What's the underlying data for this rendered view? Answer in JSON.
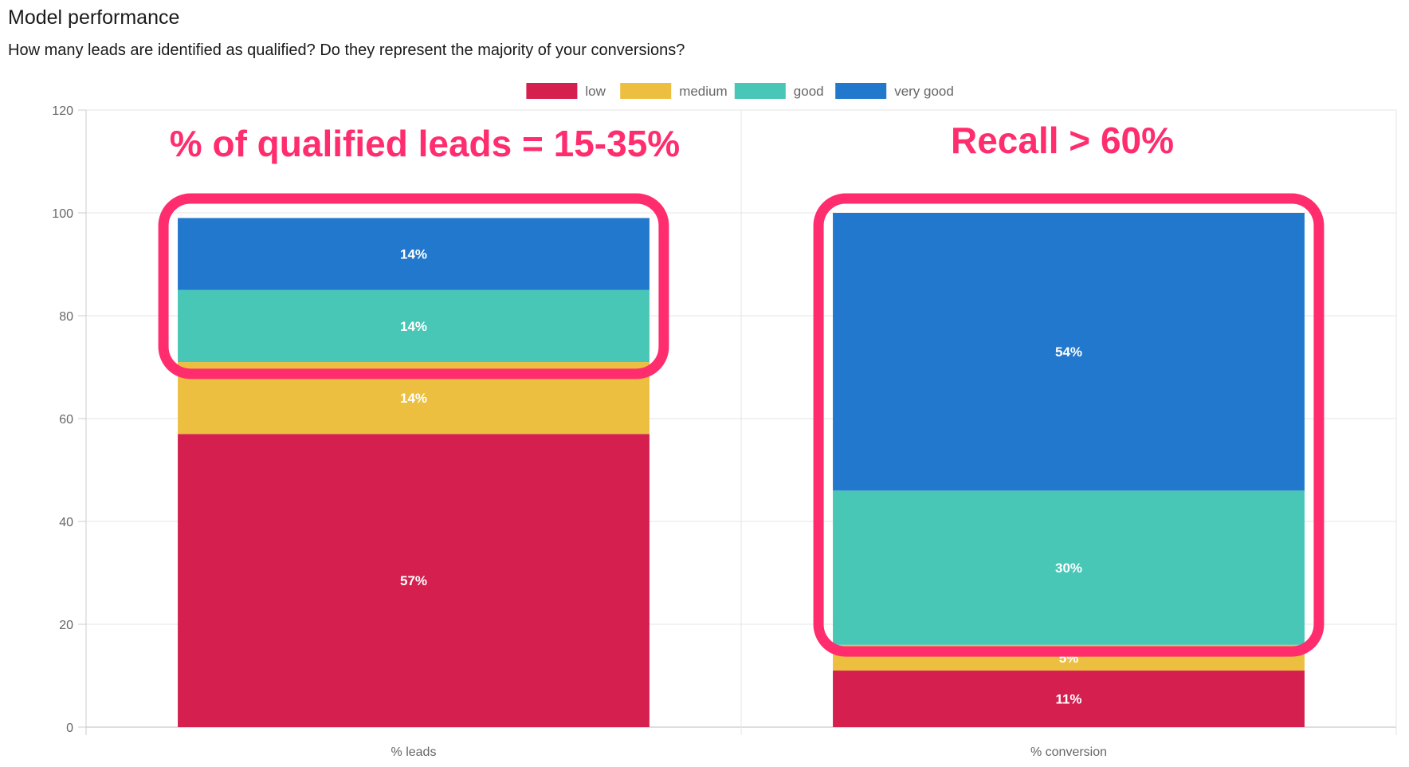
{
  "title": "Model performance",
  "subtitle": "How many leads are identified as qualified? Do they represent the majority of your conversions?",
  "chart_data": {
    "type": "bar",
    "stacked": true,
    "categories": [
      "% leads",
      "% conversion"
    ],
    "series": [
      {
        "name": "low",
        "color": "#d41f4f",
        "values": [
          57,
          11
        ],
        "labels": [
          "57%",
          "11%"
        ]
      },
      {
        "name": "medium",
        "color": "#ecbf41",
        "values": [
          14,
          5
        ],
        "labels": [
          "14%",
          "5%"
        ]
      },
      {
        "name": "good",
        "color": "#48c6b6",
        "values": [
          14,
          30
        ],
        "labels": [
          "14%",
          "30%"
        ]
      },
      {
        "name": "very good",
        "color": "#2178cc",
        "values": [
          14,
          54
        ],
        "labels": [
          "14%",
          "54%"
        ]
      }
    ],
    "ylim": [
      0,
      120
    ],
    "yticks": [
      0,
      20,
      40,
      60,
      80,
      100,
      120
    ],
    "grid": true,
    "legend_position": "top",
    "annotations": [
      {
        "text": "% of qualified leads = 15-35%",
        "category": 0,
        "highlight_from": 71.5,
        "highlight_to": 100
      },
      {
        "text": "Recall > 60%",
        "category": 1,
        "highlight_from": 17.5,
        "highlight_to": 100
      }
    ],
    "annotation_color": "#ff2d6e"
  }
}
